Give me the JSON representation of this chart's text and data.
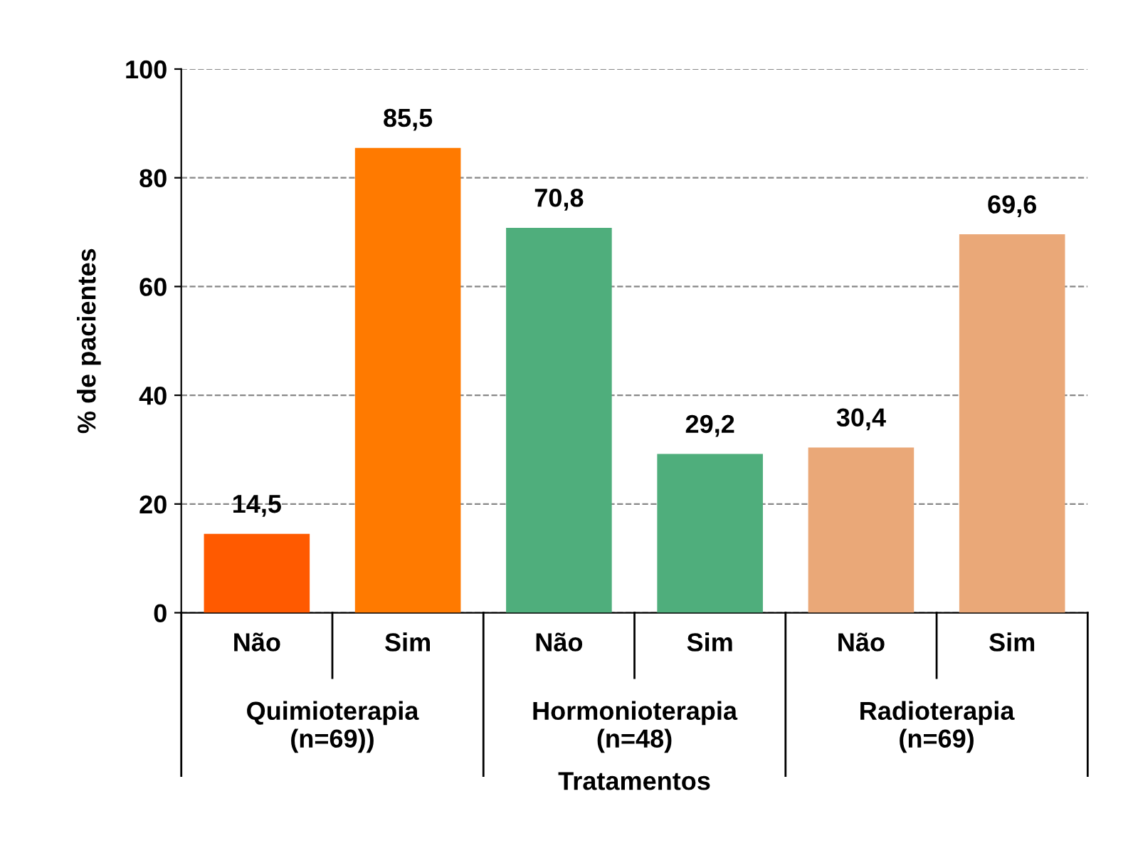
{
  "chart_data": {
    "type": "bar",
    "xlabel": "Tratamentos",
    "ylabel": "% de pacientes",
    "categories": [
      "Não",
      "Sim",
      "Não",
      "Sim",
      "Não",
      "Sim"
    ],
    "values": [
      14.5,
      85.5,
      70.8,
      29.2,
      30.4,
      69.6
    ],
    "colors": [
      "#ff5a00",
      "#ff7a00",
      "#4fae7c",
      "#4fae7c",
      "#eaa878",
      "#eaa878"
    ],
    "value_labels": [
      "14,5",
      "85,5",
      "70,8",
      "29,2",
      "30,4",
      "69,6"
    ],
    "annotations": [
      "Quimioterapia\n(n=69))",
      "Hormonioterapia\n(n=48)",
      "Radioterapia\n(n=69)"
    ],
    "ylim": [
      0,
      100
    ],
    "yticks": [
      0,
      20,
      40,
      60,
      80,
      100
    ],
    "grid": "y"
  }
}
